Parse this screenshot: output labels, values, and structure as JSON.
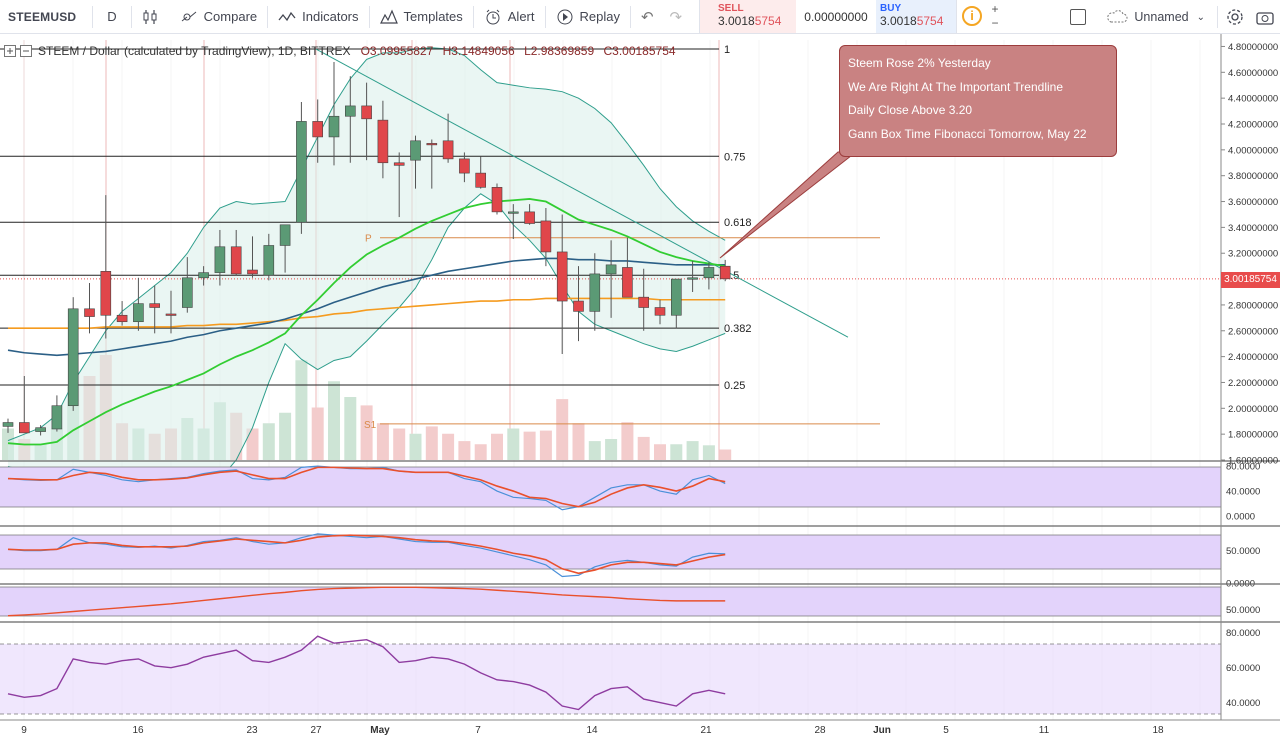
{
  "toolbar": {
    "symbol": "STEEMUSD",
    "interval": "D",
    "compare": "Compare",
    "indicators": "Indicators",
    "templates": "Templates",
    "alert": "Alert",
    "replay": "Replay",
    "sell_label": "SELL",
    "sell_price_main": "3.0018",
    "sell_price_tail": "5754",
    "mid_value": "0.00000000",
    "buy_label": "BUY",
    "buy_price_main": "3.0018",
    "buy_price_tail": "5754",
    "layout_name": "Unnamed"
  },
  "legend": {
    "title": "STEEM / Dollar (calculated by TradingView), 1D, BITTREX",
    "open": "O3.09955827",
    "high": "H3.14849056",
    "low": "L2.98369859",
    "close": "C3.00185754"
  },
  "annotation": {
    "lines": [
      "Steem Rose 2% Yesterday",
      "We Are Right At The Important Trendline",
      "Daily Close Above 3.20",
      "Gann Box Time Fibonacci Tomorrow, May 22"
    ],
    "fill_color": "#c98282"
  },
  "current_price_tag": "3.00185754",
  "colors": {
    "up": "#5b9a75",
    "down": "#e0464a",
    "ema_short": "#32cd32",
    "ema_mid": "#2b5f86",
    "ema_long": "#f59b1f",
    "bollinger": "#2e9e8c",
    "oscillator_fill": "#e3d3fb",
    "stoch_k": "#4a90d9",
    "stoch_d": "#e9502c"
  },
  "chart_data": {
    "type": "candlestick",
    "x_tick_labels": [
      "9",
      "16",
      "23",
      "27",
      "May",
      "7",
      "14",
      "21",
      "28",
      "Jun",
      "5",
      "11",
      "18"
    ],
    "y_ticks": [
      "4.80000000",
      "4.60000000",
      "4.40000000",
      "4.20000000",
      "4.00000000",
      "3.80000000",
      "3.60000000",
      "3.40000000",
      "3.20000000",
      "3.00185754",
      "2.80000000",
      "2.60000000",
      "2.40000000",
      "2.20000000",
      "2.00000000",
      "1.80000000",
      "1.60000000"
    ],
    "ylim": [
      1.6,
      4.85
    ],
    "candles": [
      {
        "o": 1.86,
        "h": 1.92,
        "l": 1.81,
        "c": 1.89
      },
      {
        "o": 1.89,
        "h": 2.25,
        "l": 1.82,
        "c": 1.81
      },
      {
        "o": 1.82,
        "h": 1.87,
        "l": 1.79,
        "c": 1.85
      },
      {
        "o": 1.84,
        "h": 2.1,
        "l": 1.82,
        "c": 2.02
      },
      {
        "o": 2.02,
        "h": 2.86,
        "l": 1.98,
        "c": 2.77
      },
      {
        "o": 2.77,
        "h": 2.97,
        "l": 2.58,
        "c": 2.71
      },
      {
        "o": 3.06,
        "h": 3.65,
        "l": 2.54,
        "c": 2.72
      },
      {
        "o": 2.72,
        "h": 2.83,
        "l": 2.64,
        "c": 2.67
      },
      {
        "o": 2.67,
        "h": 3.01,
        "l": 2.6,
        "c": 2.81
      },
      {
        "o": 2.81,
        "h": 2.95,
        "l": 2.58,
        "c": 2.78
      },
      {
        "o": 2.73,
        "h": 2.91,
        "l": 2.58,
        "c": 2.72
      },
      {
        "o": 2.78,
        "h": 3.17,
        "l": 2.74,
        "c": 3.01
      },
      {
        "o": 3.01,
        "h": 3.1,
        "l": 2.95,
        "c": 3.05
      },
      {
        "o": 3.05,
        "h": 3.38,
        "l": 2.95,
        "c": 3.25
      },
      {
        "o": 3.25,
        "h": 3.38,
        "l": 3.03,
        "c": 3.04
      },
      {
        "o": 3.07,
        "h": 3.33,
        "l": 3.01,
        "c": 3.04
      },
      {
        "o": 3.03,
        "h": 3.35,
        "l": 2.99,
        "c": 3.26
      },
      {
        "o": 3.26,
        "h": 3.42,
        "l": 3.05,
        "c": 3.42
      },
      {
        "o": 3.44,
        "h": 4.37,
        "l": 3.35,
        "c": 4.22
      },
      {
        "o": 4.22,
        "h": 4.39,
        "l": 3.9,
        "c": 4.1
      },
      {
        "o": 4.1,
        "h": 4.68,
        "l": 3.88,
        "c": 4.26
      },
      {
        "o": 4.26,
        "h": 4.57,
        "l": 3.9,
        "c": 4.34
      },
      {
        "o": 4.34,
        "h": 4.52,
        "l": 3.92,
        "c": 4.24
      },
      {
        "o": 4.23,
        "h": 4.38,
        "l": 3.78,
        "c": 3.9
      },
      {
        "o": 3.9,
        "h": 3.98,
        "l": 3.48,
        "c": 3.88
      },
      {
        "o": 3.92,
        "h": 4.11,
        "l": 3.7,
        "c": 4.07
      },
      {
        "o": 4.05,
        "h": 4.08,
        "l": 3.7,
        "c": 4.04
      },
      {
        "o": 4.07,
        "h": 4.28,
        "l": 3.9,
        "c": 3.93
      },
      {
        "o": 3.93,
        "h": 3.98,
        "l": 3.75,
        "c": 3.82
      },
      {
        "o": 3.82,
        "h": 3.95,
        "l": 3.7,
        "c": 3.71
      },
      {
        "o": 3.71,
        "h": 3.74,
        "l": 3.5,
        "c": 3.52
      },
      {
        "o": 3.52,
        "h": 3.58,
        "l": 3.31,
        "c": 3.52
      },
      {
        "o": 3.52,
        "h": 3.58,
        "l": 3.42,
        "c": 3.43
      },
      {
        "o": 3.45,
        "h": 3.55,
        "l": 3.1,
        "c": 3.21
      },
      {
        "o": 3.21,
        "h": 3.5,
        "l": 2.42,
        "c": 2.83
      },
      {
        "o": 2.83,
        "h": 3.1,
        "l": 2.52,
        "c": 2.75
      },
      {
        "o": 2.75,
        "h": 3.2,
        "l": 2.6,
        "c": 3.04
      },
      {
        "o": 3.04,
        "h": 3.3,
        "l": 2.7,
        "c": 3.11
      },
      {
        "o": 3.09,
        "h": 3.32,
        "l": 2.88,
        "c": 2.86
      },
      {
        "o": 2.86,
        "h": 3.08,
        "l": 2.6,
        "c": 2.78
      },
      {
        "o": 2.78,
        "h": 2.84,
        "l": 2.65,
        "c": 2.72
      },
      {
        "o": 2.72,
        "h": 3.0,
        "l": 2.62,
        "c": 3.0
      },
      {
        "o": 3.0,
        "h": 3.14,
        "l": 2.9,
        "c": 3.01
      },
      {
        "o": 3.01,
        "h": 3.13,
        "l": 2.92,
        "c": 3.09
      },
      {
        "o": 3.09955827,
        "h": 3.14849056,
        "l": 2.98369859,
        "c": 3.00185754
      }
    ],
    "ema_short": [
      1.73,
      1.72,
      1.72,
      1.74,
      1.83,
      1.9,
      1.97,
      2.03,
      2.08,
      2.13,
      2.17,
      2.22,
      2.27,
      2.34,
      2.4,
      2.45,
      2.51,
      2.58,
      2.72,
      2.84,
      2.97,
      3.09,
      3.19,
      3.26,
      3.32,
      3.39,
      3.45,
      3.5,
      3.55,
      3.58,
      3.6,
      3.61,
      3.62,
      3.6,
      3.53,
      3.46,
      3.42,
      3.38,
      3.33,
      3.27,
      3.21,
      3.17,
      3.14,
      3.12,
      3.1
    ],
    "ema_mid": [
      2.45,
      2.43,
      2.42,
      2.41,
      2.42,
      2.43,
      2.44,
      2.46,
      2.48,
      2.5,
      2.52,
      2.55,
      2.57,
      2.6,
      2.62,
      2.64,
      2.66,
      2.69,
      2.73,
      2.77,
      2.82,
      2.86,
      2.9,
      2.94,
      2.97,
      3.0,
      3.03,
      3.06,
      3.08,
      3.1,
      3.12,
      3.14,
      3.15,
      3.16,
      3.16,
      3.15,
      3.15,
      3.14,
      3.14,
      3.13,
      3.12,
      3.11,
      3.11,
      3.11,
      3.11
    ],
    "ema_long": [
      2.62,
      2.62,
      2.62,
      2.62,
      2.62,
      2.62,
      2.63,
      2.63,
      2.63,
      2.63,
      2.63,
      2.64,
      2.64,
      2.65,
      2.65,
      2.66,
      2.67,
      2.68,
      2.7,
      2.71,
      2.73,
      2.74,
      2.76,
      2.77,
      2.78,
      2.79,
      2.8,
      2.81,
      2.82,
      2.83,
      2.83,
      2.84,
      2.84,
      2.85,
      2.85,
      2.85,
      2.85,
      2.85,
      2.85,
      2.85,
      2.84,
      2.84,
      2.84,
      2.84,
      2.84
    ],
    "bollinger_upper": [
      1.75,
      1.8,
      1.85,
      1.95,
      2.2,
      2.4,
      2.6,
      2.75,
      2.85,
      2.95,
      3.05,
      3.2,
      3.4,
      3.55,
      3.6,
      3.58,
      3.59,
      3.6,
      3.85,
      4.1,
      4.35,
      4.55,
      4.7,
      4.75,
      4.75,
      4.78,
      4.79,
      4.78,
      4.73,
      4.62,
      4.52,
      4.5,
      4.48,
      4.47,
      4.45,
      4.4,
      4.32,
      4.21,
      4.05,
      3.88,
      3.7,
      3.56,
      3.45,
      3.37,
      3.3
    ],
    "bollinger_lower": [
      1.55,
      1.52,
      1.5,
      1.48,
      1.4,
      1.38,
      1.36,
      1.35,
      1.34,
      1.34,
      1.35,
      1.36,
      1.38,
      1.45,
      1.6,
      1.85,
      2.2,
      2.5,
      2.38,
      2.3,
      2.37,
      2.4,
      2.52,
      2.65,
      2.78,
      2.93,
      3.15,
      3.4,
      3.55,
      3.66,
      3.58,
      3.42,
      3.3,
      3.16,
      2.95,
      2.75,
      2.65,
      2.6,
      2.55,
      2.5,
      2.46,
      2.44,
      2.48,
      2.53,
      2.58
    ],
    "volume": [
      0.3,
      0.2,
      0.15,
      0.3,
      0.7,
      0.8,
      1.0,
      0.35,
      0.3,
      0.25,
      0.3,
      0.4,
      0.3,
      0.55,
      0.45,
      0.3,
      0.35,
      0.45,
      0.95,
      0.5,
      0.75,
      0.6,
      0.52,
      0.35,
      0.3,
      0.25,
      0.32,
      0.25,
      0.18,
      0.15,
      0.25,
      0.3,
      0.27,
      0.28,
      0.58,
      0.35,
      0.18,
      0.2,
      0.36,
      0.22,
      0.15,
      0.15,
      0.18,
      0.14,
      0.1
    ],
    "fib_levels": [
      {
        "label": "1",
        "value": 4.78
      },
      {
        "label": "0.75",
        "value": 3.95
      },
      {
        "label": "0.618",
        "value": 3.44
      },
      {
        "label": "0.5",
        "value": 3.03
      },
      {
        "label": "0.382",
        "value": 2.62
      },
      {
        "label": "0.25",
        "value": 2.18
      }
    ],
    "pivot_labels": [
      {
        "label": "P",
        "value": 3.32
      },
      {
        "label": "S1",
        "value": 1.88
      }
    ],
    "trendline": {
      "from": 4.78,
      "to": 2.55
    },
    "osc1": {
      "k": [
        60,
        58,
        57,
        58,
        75,
        70,
        65,
        58,
        55,
        58,
        60,
        62,
        68,
        72,
        74,
        60,
        58,
        62,
        78,
        80,
        78,
        76,
        76,
        78,
        72,
        70,
        70,
        70,
        60,
        55,
        40,
        30,
        28,
        25,
        10,
        15,
        30,
        45,
        50,
        50,
        40,
        35,
        58,
        65,
        52
      ],
      "d": [
        60,
        59,
        58,
        58,
        65,
        70,
        68,
        62,
        58,
        58,
        59,
        61,
        66,
        70,
        72,
        66,
        60,
        60,
        70,
        78,
        78,
        77,
        76,
        76,
        72,
        70,
        70,
        70,
        64,
        58,
        48,
        40,
        30,
        28,
        20,
        15,
        22,
        35,
        45,
        50,
        46,
        40,
        48,
        60,
        55
      ],
      "ticks": [
        "80.0000",
        "40.0000",
        "0.0000"
      ]
    },
    "osc2": {
      "k": [
        52,
        50,
        50,
        52,
        70,
        62,
        60,
        56,
        55,
        57,
        54,
        58,
        64,
        66,
        70,
        64,
        60,
        62,
        70,
        76,
        74,
        72,
        70,
        72,
        68,
        64,
        63,
        63,
        58,
        54,
        48,
        42,
        36,
        28,
        10,
        12,
        25,
        32,
        35,
        32,
        28,
        26,
        40,
        46,
        45
      ],
      "d": [
        52,
        51,
        51,
        52,
        60,
        62,
        62,
        58,
        56,
        56,
        56,
        57,
        62,
        65,
        68,
        66,
        64,
        62,
        66,
        71,
        73,
        74,
        73,
        72,
        70,
        67,
        65,
        64,
        61,
        57,
        52,
        46,
        42,
        36,
        22,
        15,
        20,
        28,
        32,
        32,
        30,
        28,
        34,
        40,
        44
      ],
      "ticks": [
        "50.0000",
        "0.0000"
      ]
    },
    "osc3": {
      "line": [
        20,
        24,
        28,
        34,
        40,
        46,
        52,
        58,
        64,
        70,
        76,
        84,
        92,
        100,
        108,
        116,
        124,
        130,
        138,
        144,
        148,
        150,
        152,
        154,
        154,
        154,
        152,
        150,
        148,
        145,
        140,
        135,
        130,
        124,
        118,
        114,
        110,
        106,
        100,
        96,
        92,
        90,
        90,
        90,
        90
      ],
      "ticks": [
        "50.0000"
      ]
    },
    "osc4": {
      "line": [
        45,
        43,
        44,
        48,
        65,
        63,
        62,
        64,
        65,
        61,
        60,
        62,
        66,
        68,
        70,
        64,
        63,
        66,
        70,
        78,
        74,
        75,
        76,
        72,
        63,
        64,
        66,
        65,
        62,
        57,
        53,
        52,
        50,
        46,
        38,
        36,
        44,
        48,
        49,
        42,
        40,
        38,
        45,
        47,
        45
      ],
      "ticks": [
        "80.0000",
        "60.0000",
        "40.0000"
      ]
    }
  }
}
